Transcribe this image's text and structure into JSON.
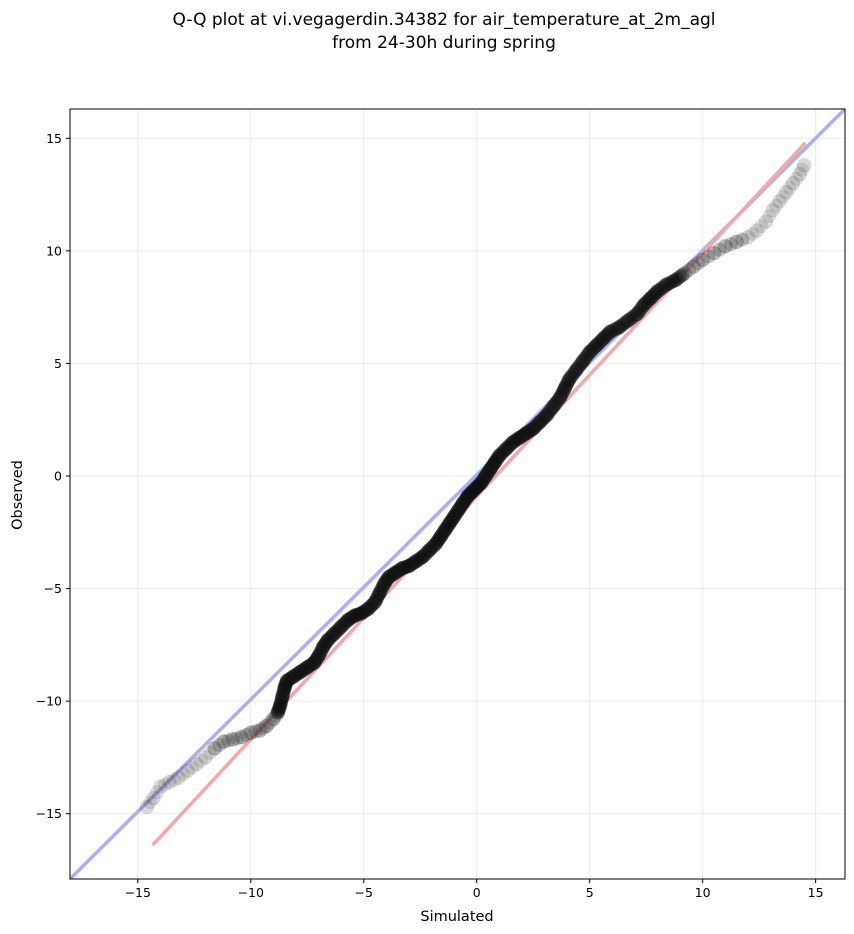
{
  "chart_data": {
    "type": "scatter",
    "title_lines": [
      "Q-Q plot at vi.vegagerdin.34382 for air_temperature_at_2m_agl",
      "from 24-30h during spring"
    ],
    "xlabel": "Simulated",
    "ylabel": "Observed",
    "xlim": [
      -18,
      16.3
    ],
    "ylim": [
      -17.9,
      16.3
    ],
    "xticks": [
      -15,
      -10,
      -5,
      0,
      5,
      10,
      15
    ],
    "yticks": [
      -15,
      -10,
      -5,
      0,
      5,
      10,
      15
    ],
    "xtick_labels": [
      "−15",
      "−10",
      "−5",
      "0",
      "5",
      "10",
      "15"
    ],
    "ytick_labels": [
      "−15",
      "−10",
      "−5",
      "0",
      "5",
      "10",
      "15"
    ],
    "grid": true,
    "colors": {
      "identity_line": "#aab0f5",
      "fit_line": "#f5a8a8",
      "points": "#333333",
      "points_dense": "#111111"
    },
    "reference_lines": [
      {
        "kind": "identity",
        "from": [
          -18,
          -17.9
        ],
        "to": [
          16.3,
          16.3
        ]
      },
      {
        "kind": "fit",
        "from": [
          -14.3,
          -16.35
        ],
        "to": [
          14.5,
          14.75
        ]
      }
    ],
    "points": [
      [
        -14.6,
        -14.7
      ],
      [
        -14.3,
        -14.3
      ],
      [
        -14.0,
        -13.8
      ],
      [
        -13.6,
        -13.6
      ],
      [
        -13.2,
        -13.4
      ],
      [
        -12.8,
        -13.1
      ],
      [
        -12.4,
        -12.8
      ],
      [
        -12.0,
        -12.5
      ],
      [
        -11.6,
        -12.1
      ],
      [
        -11.2,
        -11.8
      ],
      [
        -10.8,
        -11.7
      ],
      [
        -10.4,
        -11.6
      ],
      [
        -10.0,
        -11.4
      ],
      [
        -9.6,
        -11.3
      ],
      [
        -9.3,
        -11.1
      ],
      [
        -9.0,
        -10.8
      ],
      [
        -8.8,
        -10.5
      ],
      [
        -8.7,
        -10.2
      ],
      [
        -8.6,
        -9.8
      ],
      [
        -8.5,
        -9.4
      ],
      [
        -8.4,
        -9.1
      ],
      [
        -8.1,
        -8.9
      ],
      [
        -7.8,
        -8.7
      ],
      [
        -7.5,
        -8.5
      ],
      [
        -7.2,
        -8.3
      ],
      [
        -7.0,
        -8.0
      ],
      [
        -6.8,
        -7.6
      ],
      [
        -6.6,
        -7.3
      ],
      [
        -6.3,
        -7.0
      ],
      [
        -6.0,
        -6.7
      ],
      [
        -5.7,
        -6.4
      ],
      [
        -5.4,
        -6.2
      ],
      [
        -5.1,
        -6.1
      ],
      [
        -4.8,
        -5.9
      ],
      [
        -4.5,
        -5.6
      ],
      [
        -4.3,
        -5.2
      ],
      [
        -4.1,
        -4.8
      ],
      [
        -3.9,
        -4.5
      ],
      [
        -3.6,
        -4.3
      ],
      [
        -3.3,
        -4.1
      ],
      [
        -3.0,
        -4.0
      ],
      [
        -2.7,
        -3.8
      ],
      [
        -2.4,
        -3.6
      ],
      [
        -2.1,
        -3.3
      ],
      [
        -1.8,
        -3.0
      ],
      [
        -1.6,
        -2.7
      ],
      [
        -1.4,
        -2.4
      ],
      [
        -1.2,
        -2.1
      ],
      [
        -1.0,
        -1.8
      ],
      [
        -0.8,
        -1.5
      ],
      [
        -0.6,
        -1.2
      ],
      [
        -0.4,
        -0.9
      ],
      [
        -0.2,
        -0.7
      ],
      [
        0.0,
        -0.5
      ],
      [
        0.2,
        -0.3
      ],
      [
        0.4,
        0.0
      ],
      [
        0.6,
        0.3
      ],
      [
        0.8,
        0.6
      ],
      [
        1.0,
        0.9
      ],
      [
        1.3,
        1.2
      ],
      [
        1.6,
        1.5
      ],
      [
        1.9,
        1.7
      ],
      [
        2.2,
        1.9
      ],
      [
        2.5,
        2.1
      ],
      [
        2.8,
        2.4
      ],
      [
        3.1,
        2.7
      ],
      [
        3.4,
        3.1
      ],
      [
        3.7,
        3.5
      ],
      [
        3.9,
        3.9
      ],
      [
        4.1,
        4.3
      ],
      [
        4.4,
        4.7
      ],
      [
        4.7,
        5.1
      ],
      [
        5.0,
        5.5
      ],
      [
        5.3,
        5.8
      ],
      [
        5.6,
        6.1
      ],
      [
        5.9,
        6.4
      ],
      [
        6.3,
        6.6
      ],
      [
        6.7,
        6.9
      ],
      [
        7.1,
        7.2
      ],
      [
        7.4,
        7.6
      ],
      [
        7.7,
        7.9
      ],
      [
        8.0,
        8.2
      ],
      [
        8.4,
        8.5
      ],
      [
        8.8,
        8.7
      ],
      [
        9.2,
        9.0
      ],
      [
        9.6,
        9.3
      ],
      [
        10.0,
        9.6
      ],
      [
        10.5,
        9.9
      ],
      [
        11.0,
        10.2
      ],
      [
        11.5,
        10.4
      ],
      [
        12.0,
        10.6
      ],
      [
        12.4,
        10.9
      ],
      [
        12.8,
        11.3
      ],
      [
        13.1,
        11.8
      ],
      [
        13.4,
        12.2
      ],
      [
        13.7,
        12.6
      ],
      [
        14.0,
        13.0
      ],
      [
        14.3,
        13.4
      ],
      [
        14.5,
        13.8
      ]
    ]
  }
}
